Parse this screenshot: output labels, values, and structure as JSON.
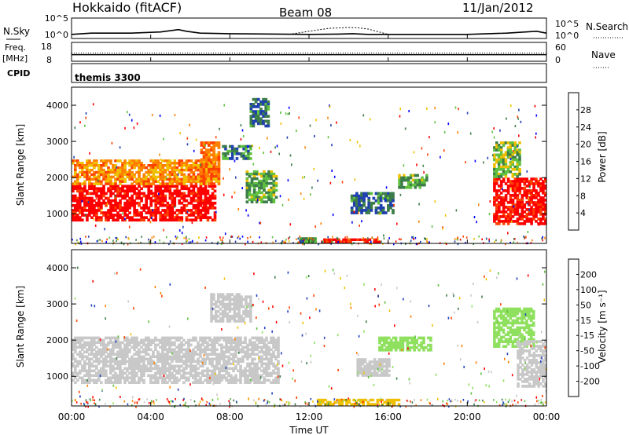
{
  "header": {
    "site": "Hokkaido (fitACF)",
    "beam": "Beam 08",
    "date": "11/Jan/2012"
  },
  "noise_panel": {
    "label": "N.Sky",
    "right_label": "N.Search",
    "ticks_left": [
      "10^5",
      "10^0"
    ],
    "ticks_right": [
      "10^5",
      "10^0"
    ]
  },
  "freq_panel": {
    "label_line1": "Freq.",
    "label_line2": "[MHz]",
    "right_label": "Nave",
    "ticks_left": [
      "18",
      "8"
    ],
    "ticks_right": [
      "60",
      "0"
    ]
  },
  "cpid": {
    "label": "CPID",
    "value": "themis 3300"
  },
  "x_axis": {
    "label": "Time UT",
    "ticks": [
      "00:00",
      "04:00",
      "08:00",
      "12:00",
      "16:00",
      "20:00",
      "00:00"
    ]
  },
  "power_panel": {
    "ylabel": "Slant Range [km]",
    "yticks": [
      "1000",
      "2000",
      "3000",
      "4000"
    ],
    "colorbar_label": "Power [dB]",
    "colorbar_ticks": [
      "4",
      "8",
      "12",
      "16",
      "20",
      "24",
      "28"
    ],
    "colors": [
      "#0000ff",
      "#2040b0",
      "#3c7d4a",
      "#60c040",
      "#f0c000",
      "#ff8000",
      "#ff4000",
      "#ff0000"
    ]
  },
  "velocity_panel": {
    "ylabel": "Slant Range [km]",
    "yticks": [
      "1000",
      "2000",
      "3000",
      "4000"
    ],
    "colorbar_label": "Velocity [m s⁻¹]",
    "colorbar_ticks": [
      "200",
      "100",
      "50",
      "15",
      "-15",
      "-50",
      "-100",
      "-200"
    ],
    "colors": [
      "#2040c0",
      "#3c7d4a",
      "#60c040",
      "#90e060",
      "#c8c8c8",
      "#f0c000",
      "#ff8000",
      "#ff4000",
      "#ff0000"
    ]
  },
  "chart_data": [
    {
      "type": "line",
      "title": "N.Sky / N.Search",
      "x_range_hours": [
        0,
        24
      ],
      "y_scale": "log",
      "ylim": [
        1,
        100000
      ],
      "series": [
        {
          "name": "N.Sky",
          "x": [
            0,
            1,
            3,
            4.5,
            5.4,
            5.8,
            6.5,
            8,
            12,
            13.5,
            14.2,
            15,
            18,
            20,
            22,
            23.5,
            24
          ],
          "y": [
            10,
            20,
            20,
            40,
            150,
            60,
            20,
            15,
            10,
            12,
            15,
            10,
            10,
            10,
            20,
            60,
            20
          ]
        },
        {
          "name": "N.Search",
          "x": [
            11,
            12,
            13,
            14,
            14.5,
            15,
            16
          ],
          "y": [
            10,
            60,
            300,
            500,
            400,
            200,
            10
          ]
        }
      ]
    },
    {
      "type": "line",
      "title": "Freq. / Nave",
      "x_range_hours": [
        0,
        24
      ],
      "series": [
        {
          "name": "Freq.",
          "x": [
            0,
            24
          ],
          "y": [
            11.5,
            11.5
          ]
        },
        {
          "name": "Nave",
          "x": [
            0,
            24
          ],
          "y": [
            26,
            26
          ]
        }
      ]
    },
    {
      "type": "heatmap",
      "title": "Power [dB]",
      "xlabel": "Time UT",
      "ylabel": "Slant Range [km]",
      "x_range_hours": [
        0,
        24
      ],
      "ylim": [
        180,
        4500
      ],
      "zlim": [
        0,
        30
      ],
      "regions": [
        {
          "t": [
            0,
            7.3
          ],
          "r": [
            800,
            1800
          ],
          "value": 29
        },
        {
          "t": [
            0,
            7.3
          ],
          "r": [
            1800,
            2500
          ],
          "value": 20
        },
        {
          "t": [
            6.5,
            7.5
          ],
          "r": [
            1800,
            3000
          ],
          "value": 22
        },
        {
          "t": [
            7.6,
            9.1
          ],
          "r": [
            2500,
            2900
          ],
          "value": 10
        },
        {
          "t": [
            8.8,
            10.4
          ],
          "r": [
            1300,
            2200
          ],
          "value": 12
        },
        {
          "t": [
            9,
            10
          ],
          "r": [
            3400,
            4200
          ],
          "value": 8
        },
        {
          "t": [
            11.5,
            12.5
          ],
          "r": [
            200,
            350
          ],
          "value": 10
        },
        {
          "t": [
            12.6,
            15.6
          ],
          "r": [
            200,
            320
          ],
          "value": 28
        },
        {
          "t": [
            14.1,
            16.3
          ],
          "r": [
            1000,
            1600
          ],
          "value": 8
        },
        {
          "t": [
            16.5,
            18
          ],
          "r": [
            1700,
            2100
          ],
          "value": 12
        },
        {
          "t": [
            21.3,
            24
          ],
          "r": [
            700,
            2000
          ],
          "value": 28
        },
        {
          "t": [
            21.3,
            22.7
          ],
          "r": [
            2000,
            3000
          ],
          "value": 14
        }
      ]
    },
    {
      "type": "heatmap",
      "title": "Velocity [m s⁻¹]",
      "xlabel": "Time UT",
      "ylabel": "Slant Range [km]",
      "x_range_hours": [
        0,
        24
      ],
      "ylim": [
        180,
        4500
      ],
      "zlim": [
        -200,
        200
      ],
      "regions": [
        {
          "t": [
            0,
            10.5
          ],
          "r": [
            800,
            2100
          ],
          "value": 0
        },
        {
          "t": [
            7,
            9.1
          ],
          "r": [
            2500,
            3300
          ],
          "value": 0
        },
        {
          "t": [
            12.4,
            16.6
          ],
          "r": [
            200,
            380
          ],
          "value": -40
        },
        {
          "t": [
            14.4,
            16.1
          ],
          "r": [
            1000,
            1500
          ],
          "value": 0
        },
        {
          "t": [
            15.5,
            18.2
          ],
          "r": [
            1700,
            2100
          ],
          "value": 40
        },
        {
          "t": [
            21.3,
            23.4
          ],
          "r": [
            1800,
            2900
          ],
          "value": 40
        },
        {
          "t": [
            22.5,
            24
          ],
          "r": [
            700,
            2000
          ],
          "value": 0
        }
      ]
    }
  ]
}
